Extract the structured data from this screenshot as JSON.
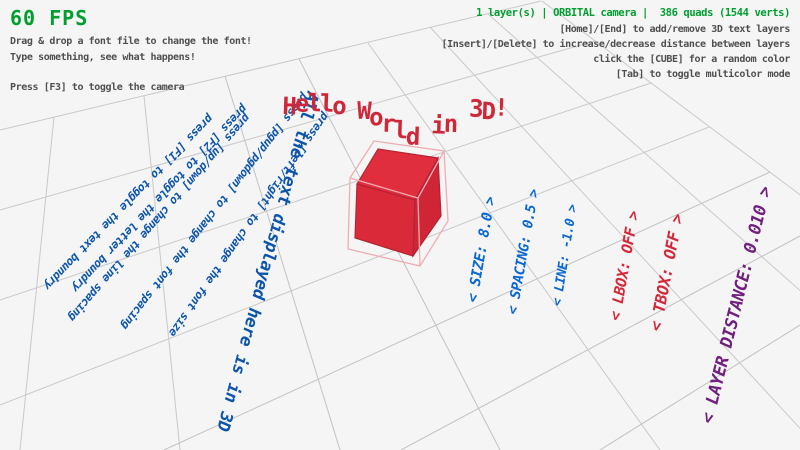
{
  "hud": {
    "fps_label": "60 FPS",
    "instructions": [
      "Drag & drop a font file to change the font!",
      "Type something, see what happens!",
      "Press [F3] to toggle the camera"
    ],
    "status": "1 layer(s) | ORBITAL camera |  386 quads (1544 verts)",
    "help": [
      "[Home]/[End] to add/remove 3D text layers",
      "[Insert]/[Delete] to increase/decrease distance between layers",
      "click the [CUBE] for a random color",
      "[Tab] to toggle multicolor mode"
    ]
  },
  "scene": {
    "title": {
      "text": "Hello World in 3D!",
      "color": "#cf2737"
    },
    "cube": {
      "fill_top": "#e12e3f",
      "fill_front": "#da2938",
      "fill_right": "#cf2535",
      "edge": "#b22433",
      "wire": "#efacb4"
    },
    "ground_texts": [
      {
        "key": "boundry-text",
        "text": "press [F1] to toggle the text boundry",
        "color": "#0d55ab"
      },
      {
        "key": "boundry-letter",
        "text": "press [F2] to toggle the letter boundry",
        "color": "#0d55ab"
      },
      {
        "key": "line-spacing",
        "text": "press [up/down] to change the line spacing",
        "color": "#0d55ab"
      },
      {
        "key": "font-spacing",
        "text": "press [pgup/pgdown] to change the font spacing",
        "color": "#0d55ab"
      },
      {
        "key": "font-size",
        "text": "press [left/right] to change the font size",
        "color": "#0d55ab"
      },
      {
        "key": "all-text-3d",
        "text": "All the text displayed here is in 3D",
        "color": "#0d55ab"
      },
      {
        "key": "opt-size",
        "text": "< SIZE: 8.0 >",
        "color": "#0a68d4"
      },
      {
        "key": "opt-spacing",
        "text": "< SPACING: 0.5 >",
        "color": "#0a68d4"
      },
      {
        "key": "opt-line",
        "text": "< LINE: -1.0 >",
        "color": "#0a68d4"
      },
      {
        "key": "opt-lbox",
        "text": "< LBOX: OFF >",
        "color": "#d4283a"
      },
      {
        "key": "opt-tbox",
        "text": "< TBOX: OFF >",
        "color": "#d4283a"
      },
      {
        "key": "opt-layer-distance",
        "text": "< LAYER DISTANCE: 0.010 >",
        "color": "#701f7e"
      }
    ],
    "colors": {
      "background": "#f5f5f5",
      "grid": "#c9c9c9",
      "fps_green": "#009e2f",
      "status_green": "#009e2f",
      "hud_gray": "#4f4f4f"
    }
  }
}
